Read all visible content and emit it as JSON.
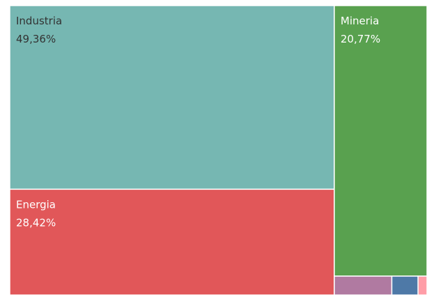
{
  "chart_data": {
    "type": "treemap",
    "categories": [
      "Industria",
      "Energia",
      "Mineria",
      null,
      null,
      null
    ],
    "values": [
      49.36,
      28.42,
      20.77,
      0.9,
      0.41,
      0.14
    ],
    "value_labels": [
      "49,36%",
      "28,42%",
      "20,77%",
      null,
      null,
      null
    ],
    "colors": [
      "#76b7b2",
      "#e15759",
      "#59a14f",
      "#b07aa1",
      "#4e79a7",
      "#ff9da7"
    ],
    "label_colors": [
      "#333333",
      "#ffffff",
      "#ffffff",
      null,
      null,
      null
    ]
  }
}
